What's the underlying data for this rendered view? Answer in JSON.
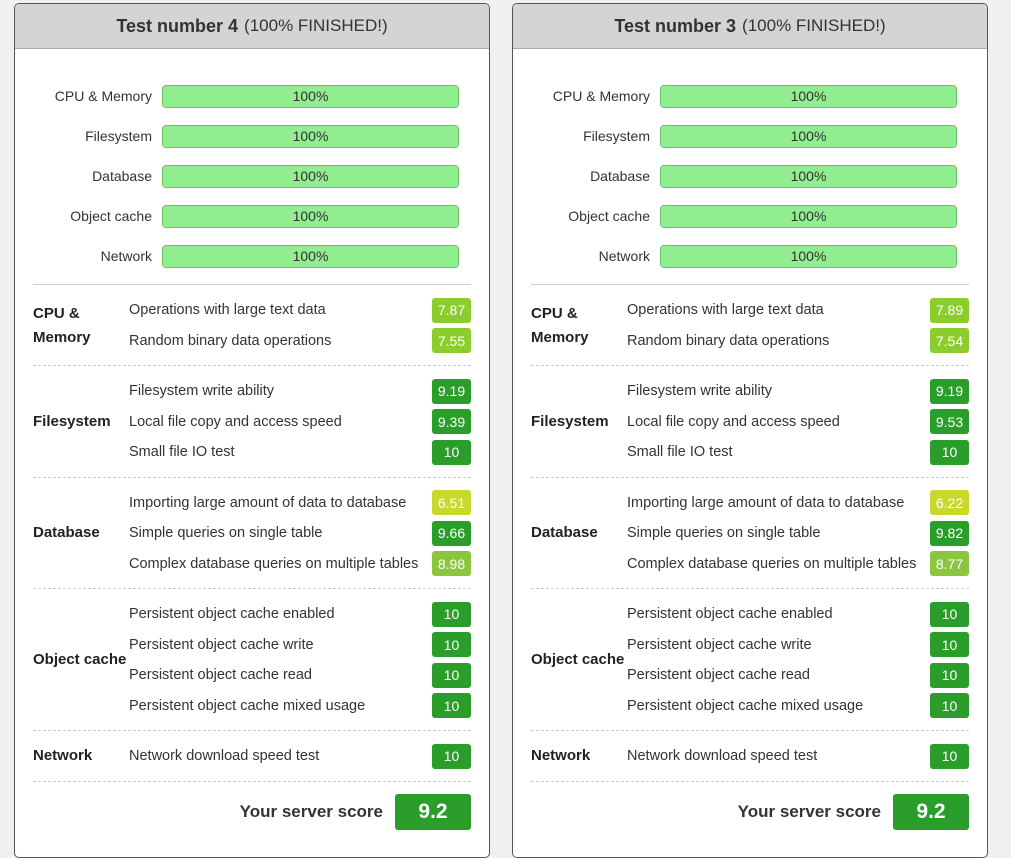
{
  "colors": {
    "score_high": "#2a9d2a",
    "score_mid": "#8ccd2e",
    "score_low": "#c8d82c",
    "bar_fill": "#90ee90"
  },
  "cards": [
    {
      "title": "Test number 4",
      "status": "(100% FINISHED!)",
      "progress": [
        {
          "label": "CPU & Memory",
          "value": 100,
          "text": "100%"
        },
        {
          "label": "Filesystem",
          "value": 100,
          "text": "100%"
        },
        {
          "label": "Database",
          "value": 100,
          "text": "100%"
        },
        {
          "label": "Object cache",
          "value": 100,
          "text": "100%"
        },
        {
          "label": "Network",
          "value": 100,
          "text": "100%"
        }
      ],
      "groups": [
        {
          "name": "CPU & Memory",
          "items": [
            {
              "name": "Operations with large text data",
              "score": "7.87",
              "color": "#8ccd2e"
            },
            {
              "name": "Random binary data operations",
              "score": "7.55",
              "color": "#8ccd2e"
            }
          ]
        },
        {
          "name": "Filesystem",
          "items": [
            {
              "name": "Filesystem write ability",
              "score": "9.19",
              "color": "#2a9d2a"
            },
            {
              "name": "Local file copy and access speed",
              "score": "9.39",
              "color": "#2a9d2a"
            },
            {
              "name": "Small file IO test",
              "score": "10",
              "color": "#2a9d2a"
            }
          ]
        },
        {
          "name": "Database",
          "items": [
            {
              "name": "Importing large amount of data to database",
              "score": "6.51",
              "color": "#c8d82c"
            },
            {
              "name": "Simple queries on single table",
              "score": "9.66",
              "color": "#2a9d2a"
            },
            {
              "name": "Complex database queries on multiple tables",
              "score": "8.98",
              "color": "#8cc63f"
            }
          ]
        },
        {
          "name": "Object cache",
          "items": [
            {
              "name": "Persistent object cache enabled",
              "score": "10",
              "color": "#2a9d2a"
            },
            {
              "name": "Persistent object cache write",
              "score": "10",
              "color": "#2a9d2a"
            },
            {
              "name": "Persistent object cache read",
              "score": "10",
              "color": "#2a9d2a"
            },
            {
              "name": "Persistent object cache mixed usage",
              "score": "10",
              "color": "#2a9d2a"
            }
          ]
        },
        {
          "name": "Network",
          "items": [
            {
              "name": "Network download speed test",
              "score": "10",
              "color": "#2a9d2a"
            }
          ]
        }
      ],
      "score_label": "Your server score",
      "score": "9.2"
    },
    {
      "title": "Test number 3",
      "status": "(100% FINISHED!)",
      "progress": [
        {
          "label": "CPU & Memory",
          "value": 100,
          "text": "100%"
        },
        {
          "label": "Filesystem",
          "value": 100,
          "text": "100%"
        },
        {
          "label": "Database",
          "value": 100,
          "text": "100%"
        },
        {
          "label": "Object cache",
          "value": 100,
          "text": "100%"
        },
        {
          "label": "Network",
          "value": 100,
          "text": "100%"
        }
      ],
      "groups": [
        {
          "name": "CPU & Memory",
          "items": [
            {
              "name": "Operations with large text data",
              "score": "7.89",
              "color": "#8ccd2e"
            },
            {
              "name": "Random binary data operations",
              "score": "7.54",
              "color": "#8ccd2e"
            }
          ]
        },
        {
          "name": "Filesystem",
          "items": [
            {
              "name": "Filesystem write ability",
              "score": "9.19",
              "color": "#2a9d2a"
            },
            {
              "name": "Local file copy and access speed",
              "score": "9.53",
              "color": "#2a9d2a"
            },
            {
              "name": "Small file IO test",
              "score": "10",
              "color": "#2a9d2a"
            }
          ]
        },
        {
          "name": "Database",
          "items": [
            {
              "name": "Importing large amount of data to database",
              "score": "6.22",
              "color": "#c8d82c"
            },
            {
              "name": "Simple queries on single table",
              "score": "9.82",
              "color": "#2a9d2a"
            },
            {
              "name": "Complex database queries on multiple tables",
              "score": "8.77",
              "color": "#8cc63f"
            }
          ]
        },
        {
          "name": "Object cache",
          "items": [
            {
              "name": "Persistent object cache enabled",
              "score": "10",
              "color": "#2a9d2a"
            },
            {
              "name": "Persistent object cache write",
              "score": "10",
              "color": "#2a9d2a"
            },
            {
              "name": "Persistent object cache read",
              "score": "10",
              "color": "#2a9d2a"
            },
            {
              "name": "Persistent object cache mixed usage",
              "score": "10",
              "color": "#2a9d2a"
            }
          ]
        },
        {
          "name": "Network",
          "items": [
            {
              "name": "Network download speed test",
              "score": "10",
              "color": "#2a9d2a"
            }
          ]
        }
      ],
      "score_label": "Your server score",
      "score": "9.2"
    }
  ]
}
